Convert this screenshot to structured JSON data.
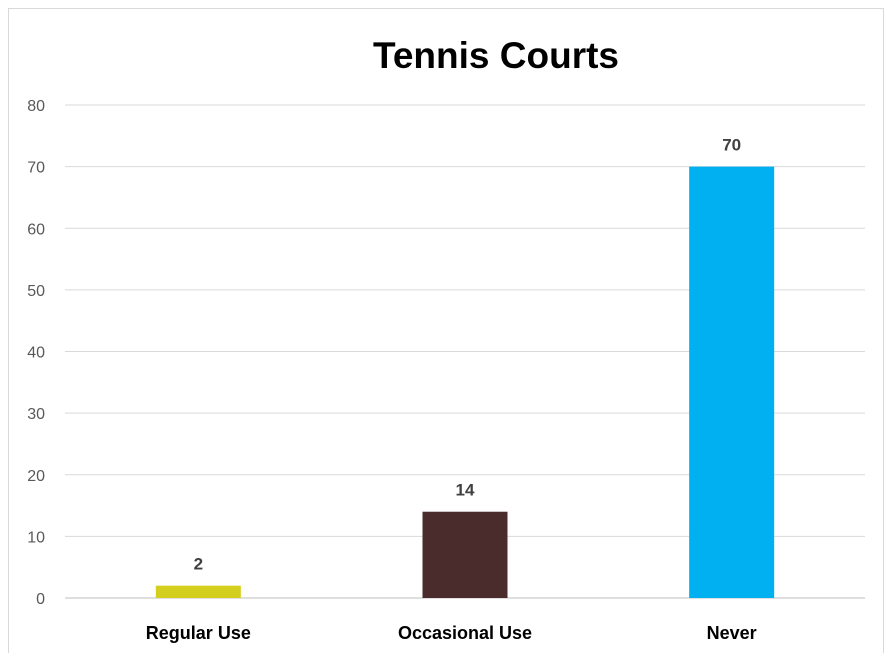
{
  "chart_data": {
    "type": "bar",
    "title": "Tennis Courts",
    "xlabel": "",
    "ylabel": "",
    "categories": [
      "Regular Use",
      "Occasional Use",
      "Never"
    ],
    "values": [
      2,
      14,
      70
    ],
    "ylim": [
      0,
      80
    ],
    "yticks": [
      0,
      10,
      20,
      30,
      40,
      50,
      60,
      70,
      80
    ],
    "bar_colors": [
      "#d4cf1f",
      "#4b2c2c",
      "#00b0f0"
    ],
    "data_labels": [
      "2",
      "14",
      "70"
    ],
    "grid": true,
    "legend": "none"
  }
}
